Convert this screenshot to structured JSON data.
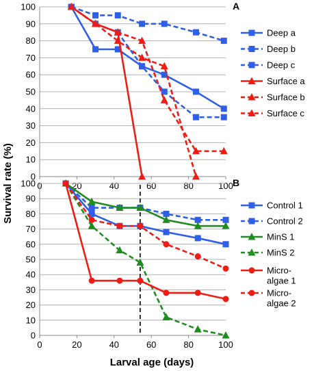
{
  "y_axis_title": "Survival rate (%)",
  "x_axis_title": "Larval age (days)",
  "colors": {
    "blue": "#2e5fe6",
    "red": "#ee1c14",
    "green": "#1e8c1e",
    "grid": "#b0b0b0"
  },
  "chart_data": [
    {
      "panel_label": "A",
      "type": "line",
      "xlim": [
        0,
        100
      ],
      "ylim": [
        0,
        100
      ],
      "x_ticks": [
        "0",
        "20",
        "40",
        "60",
        "80",
        "100"
      ],
      "y_ticks": [
        "0",
        "10",
        "20",
        "30",
        "40",
        "50",
        "60",
        "70",
        "80",
        "90",
        "100"
      ],
      "grid": "horizontal",
      "legend": "right",
      "series": [
        {
          "name": "Deep a",
          "color": "#2e5fe6",
          "dash": "solid",
          "marker": "square",
          "x": [
            17,
            30,
            42,
            55,
            67,
            84,
            99
          ],
          "y": [
            100,
            75,
            75,
            65,
            60,
            50,
            40
          ]
        },
        {
          "name": "Deep b",
          "color": "#2e5fe6",
          "dash": "dashed",
          "marker": "square",
          "x": [
            17,
            30,
            42,
            55,
            67,
            84,
            99
          ],
          "y": [
            100,
            95,
            95,
            90,
            90,
            85,
            80
          ]
        },
        {
          "name": "Deep c",
          "color": "#2e5fe6",
          "dash": "dashed",
          "marker": "square",
          "x": [
            17,
            30,
            42,
            55,
            67,
            84,
            99
          ],
          "y": [
            100,
            90,
            85,
            65,
            50,
            35,
            35
          ]
        },
        {
          "name": "Surface a",
          "color": "#ee1c14",
          "dash": "solid",
          "marker": "triangle",
          "x": [
            17,
            30,
            42,
            55
          ],
          "y": [
            100,
            90,
            85,
            0
          ]
        },
        {
          "name": "Surface b",
          "color": "#ee1c14",
          "dash": "dashed",
          "marker": "triangle",
          "x": [
            17,
            30,
            42,
            55,
            67,
            84
          ],
          "y": [
            100,
            90,
            80,
            70,
            65,
            0
          ]
        },
        {
          "name": "Surface c",
          "color": "#ee1c14",
          "dash": "dashed",
          "marker": "triangle",
          "x": [
            17,
            30,
            42,
            55,
            67,
            84,
            99
          ],
          "y": [
            100,
            90,
            85,
            80,
            45,
            15,
            15
          ]
        }
      ]
    },
    {
      "panel_label": "B",
      "type": "line",
      "xlim": [
        0,
        100
      ],
      "ylim": [
        0,
        100
      ],
      "x_ticks": [
        "0",
        "20",
        "40",
        "60",
        "80",
        "100"
      ],
      "y_ticks": [
        "0",
        "10",
        "20",
        "30",
        "40",
        "50",
        "60",
        "70",
        "80",
        "90",
        "100"
      ],
      "grid": "horizontal",
      "legend": "right",
      "vline_x": 54,
      "series": [
        {
          "name": "Control 1",
          "color": "#2e5fe6",
          "dash": "solid",
          "marker": "square",
          "x": [
            14,
            28,
            43,
            54,
            68,
            85,
            100
          ],
          "y": [
            100,
            80,
            72,
            72,
            68,
            64,
            60
          ]
        },
        {
          "name": "Control 2",
          "color": "#2e5fe6",
          "dash": "dashed",
          "marker": "square",
          "x": [
            14,
            28,
            43,
            54,
            68,
            85,
            100
          ],
          "y": [
            100,
            84,
            84,
            84,
            80,
            76,
            76
          ]
        },
        {
          "name": "MinS 1",
          "color": "#1e8c1e",
          "dash": "solid",
          "marker": "triangle",
          "x": [
            14,
            28,
            43,
            54,
            68,
            85,
            100
          ],
          "y": [
            100,
            88,
            84,
            84,
            76,
            72,
            72
          ]
        },
        {
          "name": "MinS 2",
          "color": "#1e8c1e",
          "dash": "dashed",
          "marker": "triangle",
          "x": [
            14,
            28,
            43,
            54,
            68,
            85,
            100
          ],
          "y": [
            100,
            72,
            56,
            48,
            12,
            4,
            0
          ]
        },
        {
          "name": "Micro-algae 1",
          "legend_lines": [
            "Micro-",
            "algae 1"
          ],
          "color": "#ee1c14",
          "dash": "solid",
          "marker": "circle",
          "x": [
            14,
            28,
            43,
            54,
            68,
            85,
            100
          ],
          "y": [
            100,
            36,
            36,
            36,
            28,
            28,
            24
          ]
        },
        {
          "name": "Micro-algae 2",
          "legend_lines": [
            "Micro-",
            "algae 2"
          ],
          "color": "#ee1c14",
          "dash": "dashed",
          "marker": "circle",
          "x": [
            14,
            28,
            43,
            54,
            68,
            85,
            100
          ],
          "y": [
            100,
            76,
            72,
            72,
            60,
            52,
            44
          ]
        }
      ]
    }
  ]
}
